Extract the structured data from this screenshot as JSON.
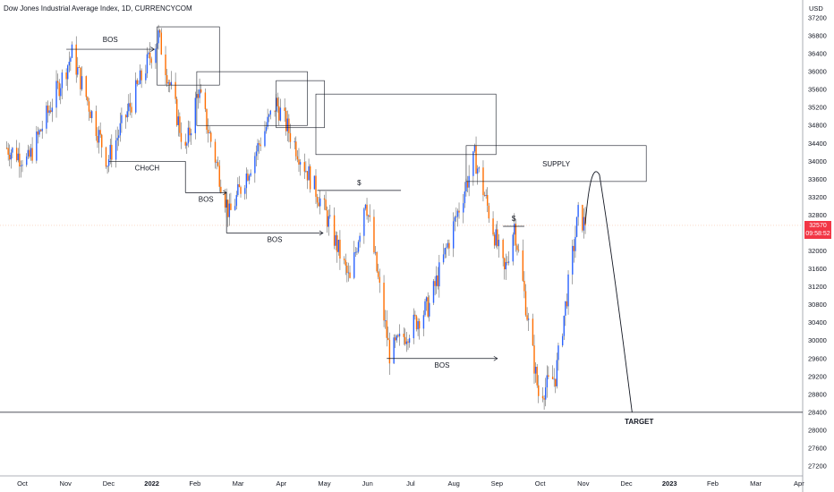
{
  "chart_data": {
    "type": "candlestick",
    "title": "Dow Jones Industrial Average Index, 1D, CURRENCYCOM",
    "currency": "USD",
    "price_label": "32570",
    "countdown_label": "09:58:52",
    "ylim": [
      27000,
      37300
    ],
    "y_ticks": [
      37200,
      36800,
      36400,
      36000,
      35600,
      35200,
      34800,
      34400,
      34000,
      33600,
      33200,
      32800,
      32400,
      32000,
      31600,
      31200,
      30800,
      30400,
      30000,
      29600,
      29200,
      28800,
      28400,
      28000,
      27600,
      27200
    ],
    "x_ticks": [
      "Oct",
      "Nov",
      "Dec",
      "2022",
      "Feb",
      "Mar",
      "Apr",
      "May",
      "Jun",
      "Jul",
      "Aug",
      "Sep",
      "Oct",
      "Nov",
      "Dec",
      "2023",
      "Feb",
      "Mar",
      "Apr"
    ],
    "key_points": [
      {
        "date": "2021-09-20",
        "close": 34300
      },
      {
        "date": "2021-10-05",
        "close": 34000
      },
      {
        "date": "2021-11-05",
        "close": 36400
      },
      {
        "date": "2021-11-30",
        "close": 34000
      },
      {
        "date": "2022-01-05",
        "close": 36800
      },
      {
        "date": "2022-01-24",
        "close": 34200
      },
      {
        "date": "2022-02-02",
        "close": 35600
      },
      {
        "date": "2022-02-24",
        "close": 32800
      },
      {
        "date": "2022-03-29",
        "close": 35300
      },
      {
        "date": "2022-05-01",
        "close": 33000
      },
      {
        "date": "2022-05-20",
        "close": 31300
      },
      {
        "date": "2022-05-31",
        "close": 33200
      },
      {
        "date": "2022-06-17",
        "close": 29700
      },
      {
        "date": "2022-07-15",
        "close": 30800
      },
      {
        "date": "2022-08-16",
        "close": 34100
      },
      {
        "date": "2022-09-06",
        "close": 31500
      },
      {
        "date": "2022-09-13",
        "close": 32600
      },
      {
        "date": "2022-09-30",
        "close": 28800
      },
      {
        "date": "2022-10-12",
        "close": 29200
      },
      {
        "date": "2022-10-28",
        "close": 32800
      },
      {
        "date": "2022-11-02",
        "close": 32570
      }
    ],
    "projection": [
      {
        "date": "2022-11-02",
        "close": 32600
      },
      {
        "date": "2022-11-12",
        "close": 33700
      },
      {
        "date": "2022-11-22",
        "close": 31500
      },
      {
        "date": "2022-12-05",
        "close": 28400
      }
    ],
    "annotations": {
      "target_label": "TARGET",
      "target_price": 28400,
      "supply_label": "SUPPLY",
      "supply_zone": {
        "from": "2022-08-10",
        "to": "2022-12-15",
        "low": 33550,
        "high": 34350
      },
      "order_blocks": [
        {
          "from": "2022-01-04",
          "to": "2022-02-17",
          "low": 35700,
          "high": 37000
        },
        {
          "from": "2022-02-01",
          "to": "2022-04-20",
          "low": 34800,
          "high": 36000
        },
        {
          "from": "2022-03-29",
          "to": "2022-05-02",
          "low": 34750,
          "high": 35800
        },
        {
          "from": "2022-04-26",
          "to": "2022-08-31",
          "low": 34150,
          "high": 35500
        }
      ],
      "structure_labels": [
        {
          "text": "BOS"
        },
        {
          "text": "CHoCH"
        },
        {
          "text": "BOS"
        },
        {
          "text": "BOS"
        },
        {
          "text": "$"
        },
        {
          "text": "$"
        },
        {
          "text": "BOS"
        }
      ]
    },
    "colors": {
      "up": "#2962ff",
      "down": "#ff6d00",
      "wick": "#4a4a4a",
      "price_tag": "#f23645"
    }
  }
}
